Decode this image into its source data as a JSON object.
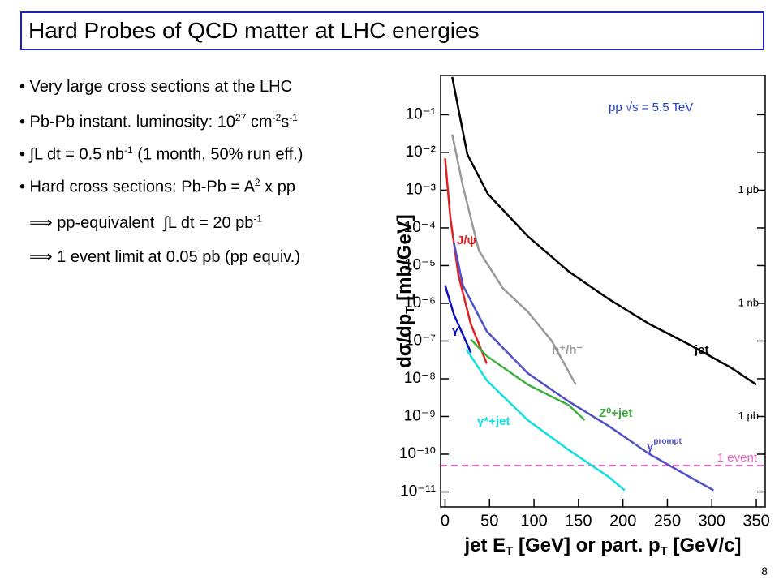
{
  "slide": {
    "title": "Hard Probes of QCD matter at LHC energies",
    "bullets": [
      [
        "• Very large cross sections at the LHC"
      ],
      [
        "• Pb-Pb instant. luminosity: 10",
        "27",
        " cm",
        "-2",
        "s",
        "-1"
      ],
      [
        "• ∫L dt = 0.5 nb",
        "-1",
        " (1 month, 50% run eff.)"
      ],
      [
        "• Hard cross sections: Pb-Pb = A",
        "2",
        " x pp"
      ],
      [
        "⟹ pp-equivalent  ∫L dt = 20 pb",
        "-1"
      ],
      [
        "⟹ 1 event limit at 0.05 pb (pp equiv.)"
      ]
    ],
    "page_number": "8"
  },
  "chart_data": {
    "type": "line",
    "ylabel": [
      "dσ/dp",
      "T",
      " [mb/GeV]"
    ],
    "xlabel": [
      "jet E",
      "T",
      " [GeV] or part. p",
      "T",
      " [GeV/c]"
    ],
    "xlim": [
      -5,
      360
    ],
    "xticks": [
      0,
      50,
      100,
      150,
      200,
      250,
      300,
      350
    ],
    "ylim": [
      4e-12,
      1.1
    ],
    "log_y": true,
    "yticks": [
      {
        "value": 0.1,
        "label": "10⁻¹"
      },
      {
        "value": 0.01,
        "label": "10⁻²"
      },
      {
        "value": 0.001,
        "label": "10⁻³"
      },
      {
        "value": 0.0001,
        "label": "10⁻⁴"
      },
      {
        "value": 1e-05,
        "label": "10⁻⁵"
      },
      {
        "value": 1e-06,
        "label": "10⁻⁶"
      },
      {
        "value": 1e-07,
        "label": "10⁻⁷"
      },
      {
        "value": 1e-08,
        "label": "10⁻⁸"
      },
      {
        "value": 1e-09,
        "label": "10⁻⁹"
      },
      {
        "value": 1e-10,
        "label": "10⁻¹⁰"
      },
      {
        "value": 1e-11,
        "label": "10⁻¹¹"
      }
    ],
    "series": [
      {
        "name": "jet",
        "color": "#000000",
        "x": [
          8,
          25,
          48,
          93,
          139,
          184,
          230,
          275,
          321,
          350
        ],
        "values": [
          1,
          0.009,
          0.0008,
          6e-05,
          7e-06,
          1.3e-06,
          2.8e-07,
          8e-08,
          2e-08,
          7e-09
        ]
      },
      {
        "name": "h⁺/h⁻",
        "color": "#999999",
        "x": [
          8,
          20,
          38,
          65,
          93,
          120,
          147
        ],
        "values": [
          0.03,
          0.0013,
          2.5e-05,
          2.5e-06,
          6e-07,
          1e-07,
          7e-09
        ]
      },
      {
        "name": "J/ψ",
        "color": "#e02020",
        "x": [
          0,
          6,
          15,
          29,
          47
        ],
        "values": [
          0.007,
          0.00018,
          5.6e-06,
          2.8e-07,
          2.5e-08
        ]
      },
      {
        "name": "Υ",
        "color": "#1010c0",
        "x": [
          0,
          10,
          29
        ],
        "values": [
          3e-06,
          5e-07,
          5e-08
        ]
      },
      {
        "name": [
          "γ",
          "prompt"
        ],
        "color": "#5050c8",
        "x": [
          10,
          20,
          47,
          93,
          139,
          184,
          230,
          275,
          302
        ],
        "values": [
          4e-05,
          3e-06,
          1.8e-07,
          1.4e-08,
          2.5e-09,
          5.6e-10,
          1e-10,
          2.5e-11,
          1.1e-11
        ]
      },
      {
        "name": "Z⁰+jet",
        "color": "#40b040",
        "x": [
          29,
          47,
          93,
          139,
          157
        ],
        "values": [
          1.1e-07,
          4e-08,
          7e-09,
          2e-09,
          8e-10
        ]
      },
      {
        "name": "γ*+jet",
        "color": "#10e0e0",
        "x": [
          24,
          47,
          93,
          139,
          184,
          202
        ],
        "values": [
          6e-08,
          9e-09,
          8e-10,
          1.3e-10,
          2.5e-11,
          1.1e-11
        ]
      }
    ],
    "limit_line": {
      "label": "1 event",
      "value": 5e-11,
      "color": "#f060c0"
    },
    "annotation": "pp √s = 5.5 TeV",
    "unit_marks": [
      {
        "label": "1 μb",
        "value": 0.001
      },
      {
        "label": "1 nb",
        "value": 1e-06
      },
      {
        "label": "1 pb",
        "value": 1e-09
      }
    ]
  }
}
